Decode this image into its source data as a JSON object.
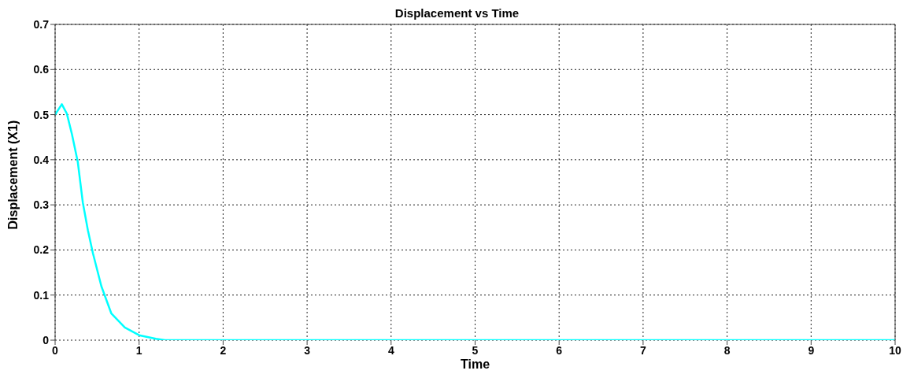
{
  "chart_data": {
    "type": "line",
    "title": "Displacement vs Time",
    "xlabel": "Time",
    "ylabel": "Displacement (X1)",
    "x": [
      0,
      0.08,
      0.14,
      0.2,
      0.27,
      0.33,
      0.39,
      0.45,
      0.55,
      0.67,
      0.83,
      1.0,
      1.2,
      1.31,
      2,
      4,
      6,
      8,
      10
    ],
    "series": [
      {
        "color": "#00ffff",
        "values": [
          0.5,
          0.523,
          0.502,
          0.457,
          0.395,
          0.305,
          0.244,
          0.193,
          0.12,
          0.059,
          0.028,
          0.011,
          0.003,
          0,
          0,
          0,
          0,
          0,
          0
        ]
      }
    ],
    "xlim": [
      0,
      10
    ],
    "xticks": [
      0,
      1,
      2,
      3,
      4,
      5,
      6,
      7,
      8,
      9,
      10
    ],
    "ylim": [
      0,
      0.7
    ],
    "yticks": [
      0,
      0.1,
      0.2,
      0.3,
      0.4,
      0.5,
      0.6,
      0.7
    ],
    "grid": true,
    "marker": "none",
    "line_style": "solid"
  }
}
